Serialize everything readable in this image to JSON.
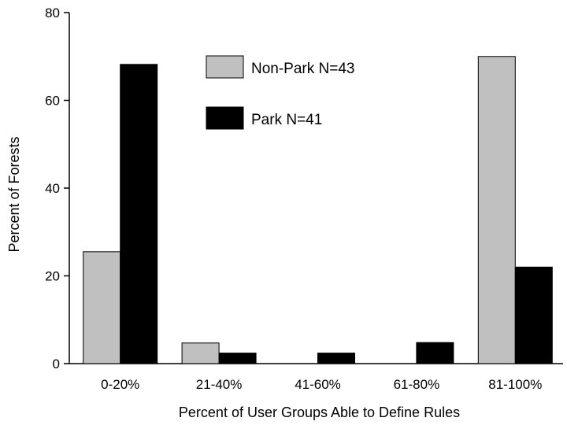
{
  "chart_data": {
    "type": "bar",
    "title": "",
    "xlabel": "Percent of User Groups Able to Define Rules",
    "ylabel": "Percent of Forests",
    "categories": [
      "0-20%",
      "21-40%",
      "41-60%",
      "61-80%",
      "81-100%"
    ],
    "series": [
      {
        "name": "Non-Park N=43",
        "values": [
          25.5,
          4.7,
          0,
          0,
          70.0
        ],
        "color": "#c0c0c0"
      },
      {
        "name": "Park N=41",
        "values": [
          68.2,
          2.4,
          2.4,
          4.8,
          22.0
        ],
        "color": "#000000"
      }
    ],
    "ylim": [
      0,
      80
    ],
    "yticks": [
      0,
      20,
      40,
      60,
      80
    ],
    "grid": false,
    "legend_position": "top-center"
  }
}
